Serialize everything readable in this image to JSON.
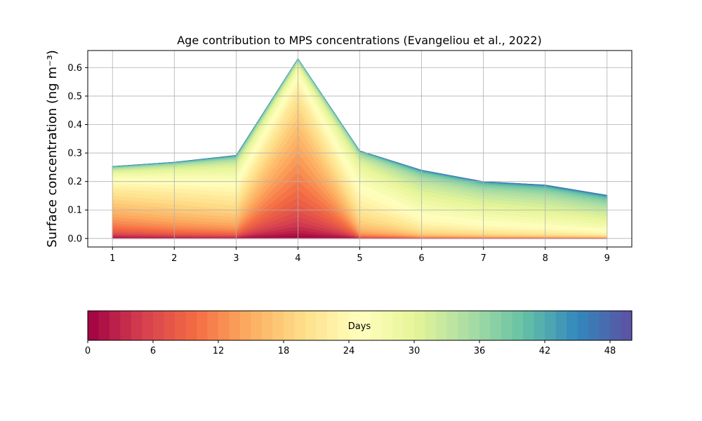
{
  "chart_data": {
    "type": "area",
    "title": "Age contribution to MPS concentrations (Evangeliou et al., 2022)",
    "ylabel": "Surface concentration (ng m⁻³)",
    "xlabel": "",
    "x": [
      1,
      2,
      3,
      4,
      5,
      6,
      7,
      8,
      9
    ],
    "xticks": [
      "1",
      "2",
      "3",
      "4",
      "5",
      "6",
      "7",
      "8",
      "9"
    ],
    "yticks": [
      "0.0",
      "0.1",
      "0.2",
      "0.3",
      "0.4",
      "0.5",
      "0.6"
    ],
    "ylim": [
      -0.03,
      0.66
    ],
    "xlim": [
      0.6,
      9.4
    ],
    "grid": true,
    "total": [
      0.253,
      0.268,
      0.292,
      0.632,
      0.308,
      0.24,
      0.2,
      0.188,
      0.152
    ],
    "colormap": "Spectral",
    "colorbar": {
      "label": "Days",
      "range": [
        0,
        50
      ],
      "ticks": [
        "0",
        "6",
        "12",
        "18",
        "24",
        "30",
        "36",
        "42",
        "48"
      ],
      "orientation": "horizontal"
    }
  }
}
